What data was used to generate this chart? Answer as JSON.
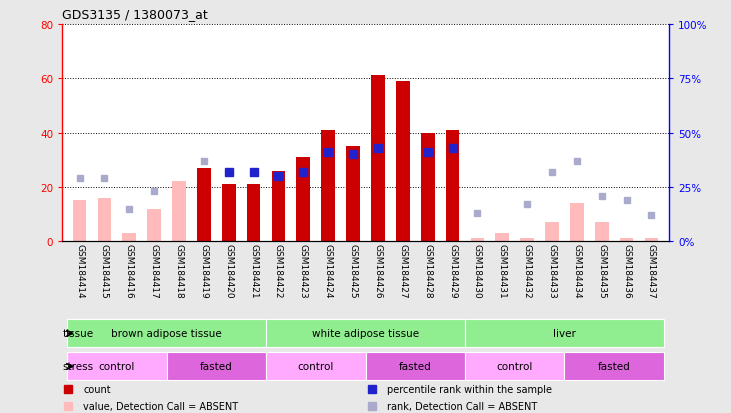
{
  "title": "GDS3135 / 1380073_at",
  "samples": [
    "GSM184414",
    "GSM184415",
    "GSM184416",
    "GSM184417",
    "GSM184418",
    "GSM184419",
    "GSM184420",
    "GSM184421",
    "GSM184422",
    "GSM184423",
    "GSM184424",
    "GSM184425",
    "GSM184426",
    "GSM184427",
    "GSM184428",
    "GSM184429",
    "GSM184430",
    "GSM184431",
    "GSM184432",
    "GSM184433",
    "GSM184434",
    "GSM184435",
    "GSM184436",
    "GSM184437"
  ],
  "count_values": [
    null,
    null,
    null,
    null,
    null,
    27,
    21,
    21,
    26,
    31,
    41,
    35,
    61,
    59,
    40,
    41,
    null,
    null,
    null,
    null,
    null,
    null,
    null,
    null
  ],
  "count_absent": [
    15,
    16,
    3,
    12,
    22,
    null,
    null,
    null,
    null,
    null,
    null,
    null,
    null,
    null,
    null,
    null,
    1,
    3,
    1,
    7,
    14,
    7,
    1,
    1
  ],
  "rank_values": [
    null,
    null,
    null,
    null,
    null,
    null,
    32,
    32,
    30,
    32,
    41,
    40,
    43,
    null,
    41,
    43,
    null,
    null,
    null,
    null,
    null,
    null,
    null,
    null
  ],
  "rank_absent": [
    29,
    29,
    15,
    23,
    null,
    37,
    null,
    null,
    null,
    null,
    null,
    null,
    null,
    null,
    null,
    null,
    13,
    null,
    17,
    32,
    37,
    21,
    19,
    12
  ],
  "tissue_groups": [
    {
      "label": "brown adipose tissue",
      "start": 0,
      "end": 8,
      "color": "#90ee90"
    },
    {
      "label": "white adipose tissue",
      "start": 8,
      "end": 16,
      "color": "#90ee90"
    },
    {
      "label": "liver",
      "start": 16,
      "end": 24,
      "color": "#90ee90"
    }
  ],
  "stress_groups": [
    {
      "label": "control",
      "start": 0,
      "end": 4,
      "color": "#ffaaff"
    },
    {
      "label": "fasted",
      "start": 4,
      "end": 8,
      "color": "#dd66dd"
    },
    {
      "label": "control",
      "start": 8,
      "end": 12,
      "color": "#ffaaff"
    },
    {
      "label": "fasted",
      "start": 12,
      "end": 16,
      "color": "#dd66dd"
    },
    {
      "label": "control",
      "start": 16,
      "end": 20,
      "color": "#ffaaff"
    },
    {
      "label": "fasted",
      "start": 20,
      "end": 24,
      "color": "#dd66dd"
    }
  ],
  "ylim_left": [
    0,
    80
  ],
  "ylim_right": [
    0,
    100
  ],
  "yticks_left": [
    0,
    20,
    40,
    60,
    80
  ],
  "yticks_right": [
    0,
    25,
    50,
    75,
    100
  ],
  "bar_width": 0.55,
  "count_color": "#cc0000",
  "count_absent_color": "#ffbbbb",
  "rank_color": "#2222cc",
  "rank_absent_color": "#aaaacc",
  "bg_color": "#e8e8e8",
  "plot_bg": "#ffffff"
}
